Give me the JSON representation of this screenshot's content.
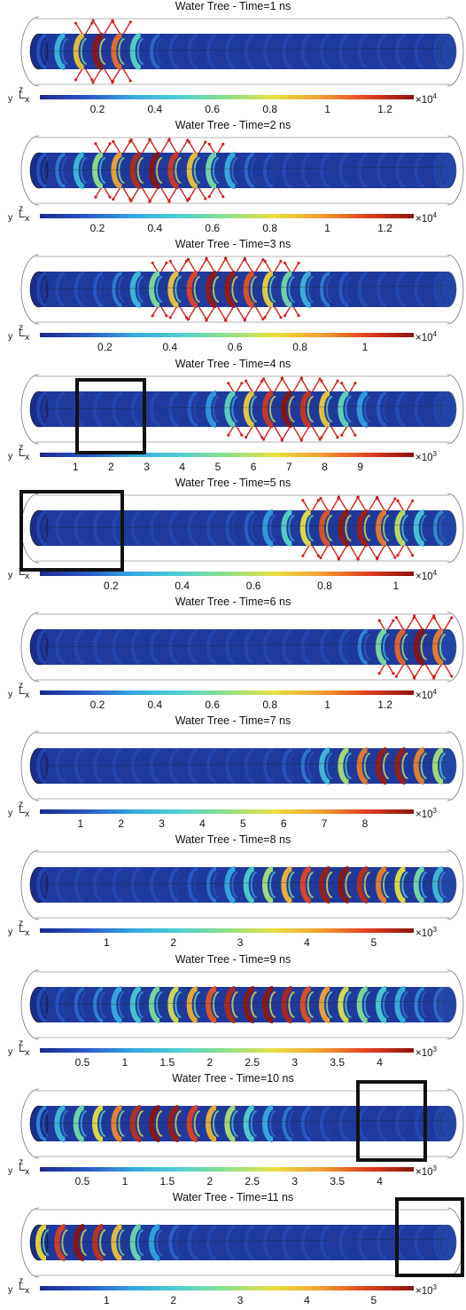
{
  "colormap": [
    "#1b2a8c",
    "#2a57c8",
    "#35a8e0",
    "#4fd0d0",
    "#8ee08a",
    "#e8e040",
    "#f0a030",
    "#e04020",
    "#8c1410"
  ],
  "panels": [
    {
      "title": "Water Tree - Time=1 ns",
      "ticks": [
        "0.2",
        "0.4",
        "0.6",
        "0.8",
        "1",
        "1.2"
      ],
      "tick_values": [
        0.2,
        0.4,
        0.6,
        0.8,
        1,
        1.2
      ],
      "range": [
        0,
        1.3
      ],
      "multiplier": "×10",
      "exponent": "4",
      "wave_center": 0.15,
      "wave_width": 0.12,
      "arrows": true
    },
    {
      "title": "Water Tree - Time=2 ns",
      "ticks": [
        "0.2",
        "0.4",
        "0.6",
        "0.8",
        "1",
        "1.2"
      ],
      "tick_values": [
        0.2,
        0.4,
        0.6,
        0.8,
        1,
        1.2
      ],
      "range": [
        0,
        1.3
      ],
      "multiplier": "×10",
      "exponent": "4",
      "wave_center": 0.28,
      "wave_width": 0.22,
      "arrows": true
    },
    {
      "title": "Water Tree - Time=3 ns",
      "ticks": [
        "0.2",
        "0.4",
        "0.6",
        "0.8",
        "1"
      ],
      "tick_values": [
        0.2,
        0.4,
        0.6,
        0.8,
        1
      ],
      "range": [
        0,
        1.15
      ],
      "multiplier": "×10",
      "exponent": "4",
      "wave_center": 0.45,
      "wave_width": 0.25,
      "arrows": true
    },
    {
      "title": "Water Tree - Time=4 ns",
      "ticks": [
        "1",
        "2",
        "3",
        "4",
        "5",
        "6",
        "7",
        "8",
        "9"
      ],
      "tick_values": [
        1,
        2,
        3,
        4,
        5,
        6,
        7,
        8,
        9
      ],
      "range": [
        0,
        10.5
      ],
      "multiplier": "×10",
      "exponent": "3",
      "wave_center": 0.62,
      "wave_width": 0.2,
      "arrows": true,
      "frame": true
    },
    {
      "title": "Water Tree - Time=5 ns",
      "ticks": [
        "0.2",
        "0.4",
        "0.6",
        "0.8",
        "1"
      ],
      "tick_values": [
        0.2,
        0.4,
        0.6,
        0.8,
        1
      ],
      "range": [
        0,
        1.05
      ],
      "multiplier": "×10",
      "exponent": "4",
      "wave_center": 0.78,
      "wave_width": 0.22,
      "arrows": true,
      "frame": true
    },
    {
      "title": "Water Tree - Time=6 ns",
      "ticks": [
        "0.2",
        "0.4",
        "0.6",
        "0.8",
        "1",
        "1.2"
      ],
      "tick_values": [
        0.2,
        0.4,
        0.6,
        0.8,
        1,
        1.2
      ],
      "range": [
        0,
        1.3
      ],
      "multiplier": "×10",
      "exponent": "4",
      "wave_center": 0.95,
      "wave_width": 0.14,
      "arrows": true
    },
    {
      "title": "Water Tree - Time=7 ns",
      "ticks": [
        "1",
        "2",
        "3",
        "4",
        "5",
        "6",
        "7",
        "8"
      ],
      "tick_values": [
        1,
        2,
        3,
        4,
        5,
        6,
        7,
        8
      ],
      "range": [
        0,
        9.2
      ],
      "multiplier": "×10",
      "exponent": "3",
      "wave_center": 0.88,
      "wave_width": 0.2,
      "arrows": false
    },
    {
      "title": "Water Tree - Time=8 ns",
      "ticks": [
        "1",
        "2",
        "3",
        "4",
        "5"
      ],
      "tick_values": [
        1,
        2,
        3,
        4,
        5
      ],
      "range": [
        0,
        5.6
      ],
      "multiplier": "×10",
      "exponent": "3",
      "wave_center": 0.75,
      "wave_width": 0.3,
      "arrows": false
    },
    {
      "title": "Water Tree - Time=9 ns",
      "ticks": [
        "0.5",
        "1",
        "1.5",
        "2",
        "2.5",
        "3",
        "3.5",
        "4"
      ],
      "tick_values": [
        0.5,
        1,
        1.5,
        2,
        2.5,
        3,
        3.5,
        4
      ],
      "range": [
        0,
        4.4
      ],
      "multiplier": "×10",
      "exponent": "3",
      "wave_center": 0.55,
      "wave_width": 0.4,
      "arrows": false
    },
    {
      "title": "Water Tree - Time=10 ns",
      "ticks": [
        "0.5",
        "1",
        "1.5",
        "2",
        "2.5",
        "3",
        "3.5",
        "4"
      ],
      "tick_values": [
        0.5,
        1,
        1.5,
        2,
        2.5,
        3,
        3.5,
        4
      ],
      "range": [
        0,
        4.4
      ],
      "multiplier": "×10",
      "exponent": "3",
      "wave_center": 0.3,
      "wave_width": 0.3,
      "arrows": false,
      "frame": true
    },
    {
      "title": "Water Tree - Time=11 ns",
      "ticks": [
        "1",
        "2",
        "3",
        "4",
        "5"
      ],
      "tick_values": [
        1,
        2,
        3,
        4,
        5
      ],
      "range": [
        0,
        5.6
      ],
      "multiplier": "×10",
      "exponent": "3",
      "wave_center": 0.1,
      "wave_width": 0.2,
      "arrows": false,
      "frame": true
    }
  ]
}
